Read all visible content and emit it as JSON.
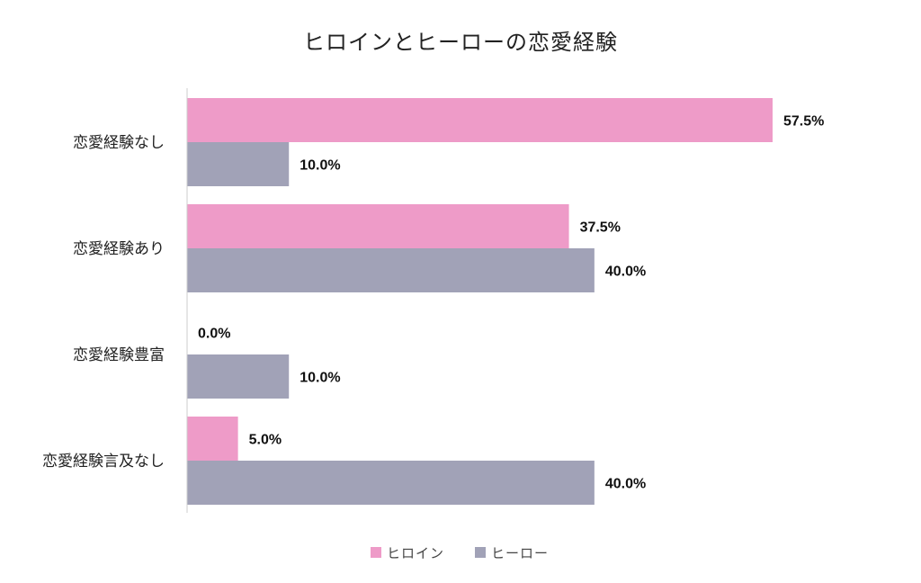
{
  "chart_data": {
    "type": "bar",
    "orientation": "horizontal",
    "title": "ヒロインとヒーローの恋愛経験",
    "categories": [
      "恋愛経験なし",
      "恋愛経験あり",
      "恋愛経験豊富",
      "恋愛経験言及なし"
    ],
    "series": [
      {
        "name": "ヒロイン",
        "color": "#ee9bc8",
        "values": [
          57.5,
          37.5,
          0.0,
          5.0
        ],
        "labels": [
          "57.5%",
          "37.5%",
          "0.0%",
          "5.0%"
        ]
      },
      {
        "name": "ヒーロー",
        "color": "#a1a2b7",
        "values": [
          10.0,
          40.0,
          10.0,
          40.0
        ],
        "labels": [
          "10.0%",
          "40.0%",
          "10.0%",
          "40.0%"
        ]
      }
    ],
    "xlim": [
      0,
      57.5
    ],
    "grid": false,
    "legend_position": "bottom",
    "axis_color": "#cccccc"
  }
}
